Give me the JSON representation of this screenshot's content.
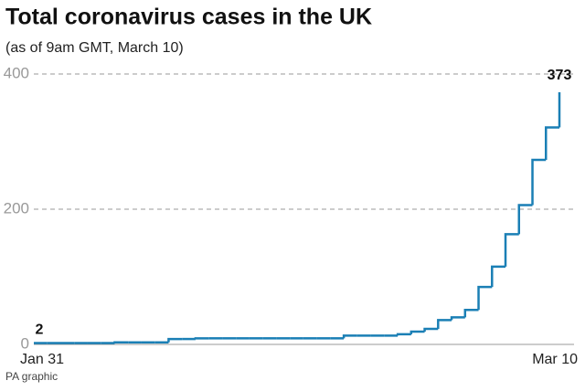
{
  "chart_data": {
    "type": "step",
    "title": "Total coronavirus cases in the UK",
    "subtitle": "(as of 9am GMT, March 10)",
    "source": "PA graphic",
    "categories": [
      "Jan 31",
      null,
      null,
      null,
      null,
      null,
      null,
      null,
      null,
      null,
      null,
      null,
      null,
      null,
      null,
      null,
      null,
      null,
      null,
      null,
      null,
      null,
      null,
      null,
      null,
      null,
      null,
      null,
      null,
      null,
      null,
      null,
      null,
      null,
      null,
      null,
      null,
      null,
      null,
      "Mar 10"
    ],
    "values": [
      2,
      2,
      2,
      2,
      2,
      2,
      3,
      3,
      3,
      3,
      8,
      8,
      9,
      9,
      9,
      9,
      9,
      9,
      9,
      9,
      9,
      9,
      9,
      13,
      13,
      13,
      13,
      15,
      19,
      23,
      36,
      40,
      51,
      85,
      115,
      163,
      206,
      273,
      321,
      373
    ],
    "color": "#1a7fb5",
    "ylim": [
      0,
      400
    ],
    "yticks": [
      0,
      200,
      400
    ],
    "grid": true
  }
}
